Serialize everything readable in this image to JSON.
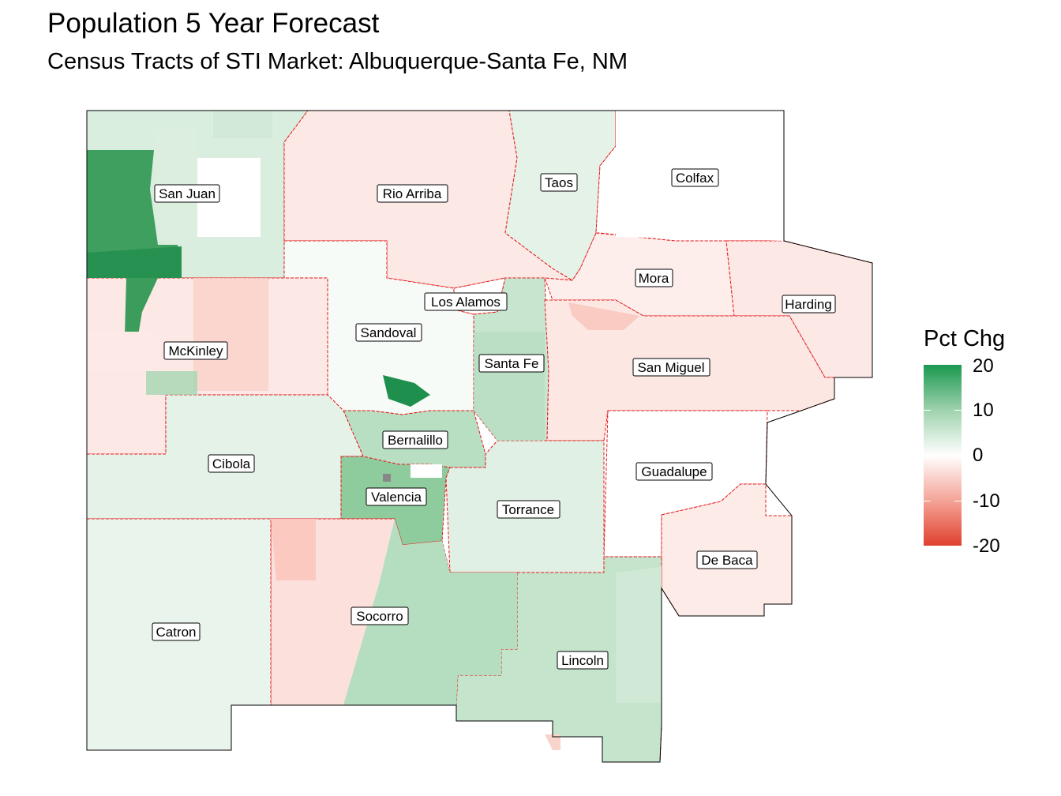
{
  "title": "Population 5 Year Forecast",
  "subtitle": "Census Tracts of STI Market: Albuquerque-Santa Fe, NM",
  "legend": {
    "title": "Pct Chg",
    "ticks": [
      "20",
      "10",
      "0",
      "-10",
      "-20"
    ],
    "range": [
      -20,
      20
    ],
    "colors": {
      "high": "#1a9850",
      "mid": "#ffffff",
      "low": "#e0402e"
    }
  },
  "boundary_color": "#e31a1c",
  "counties": [
    {
      "name": "San Juan",
      "pct_chg": 8,
      "color": "#d9eedf"
    },
    {
      "name": "Rio Arriba",
      "pct_chg": -3,
      "color": "#fce8e4"
    },
    {
      "name": "Taos",
      "pct_chg": 4,
      "color": "#e4f2e7"
    },
    {
      "name": "Colfax",
      "pct_chg": 0,
      "color": "#ffffff"
    },
    {
      "name": "Mora",
      "pct_chg": -2,
      "color": "#fdeeeb"
    },
    {
      "name": "Harding",
      "pct_chg": -3,
      "color": "#fce9e6"
    },
    {
      "name": "Los Alamos",
      "pct_chg": 0,
      "color": "#ffffff"
    },
    {
      "name": "Sandoval",
      "pct_chg": 1,
      "color": "#f6fbf7"
    },
    {
      "name": "Santa Fe",
      "pct_chg": 8,
      "color": "#c7e6cf"
    },
    {
      "name": "McKinley",
      "pct_chg": -3,
      "color": "#fce8e4"
    },
    {
      "name": "San Miguel",
      "pct_chg": -3,
      "color": "#fce7e3"
    },
    {
      "name": "Bernalillo",
      "pct_chg": 9,
      "color": "#b9dfc3"
    },
    {
      "name": "Cibola",
      "pct_chg": 4,
      "color": "#e5f2e8"
    },
    {
      "name": "Guadalupe",
      "pct_chg": 0,
      "color": "#ffffff"
    },
    {
      "name": "Valencia",
      "pct_chg": 13,
      "color": "#8fcc9d"
    },
    {
      "name": "Torrance",
      "pct_chg": 4,
      "color": "#e1f0e4"
    },
    {
      "name": "De Baca",
      "pct_chg": -2,
      "color": "#fdebe8"
    },
    {
      "name": "Socorro",
      "pct_chg": -4,
      "color": "#fbe0db"
    },
    {
      "name": "Catron",
      "pct_chg": 3,
      "color": "#e9f4ec"
    },
    {
      "name": "Lincoln",
      "pct_chg": 7,
      "color": "#c4e4cc"
    }
  ]
}
